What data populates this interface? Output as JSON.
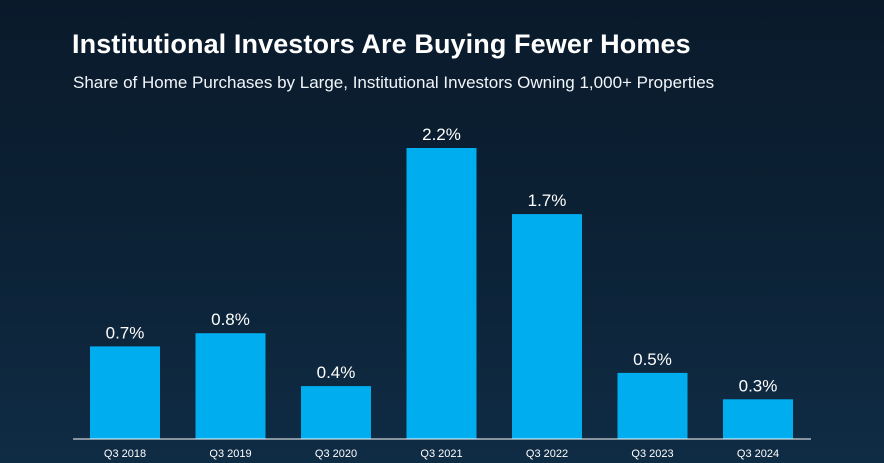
{
  "header": {
    "title": "Institutional Investors Are Buying Fewer Homes",
    "subtitle": "Share of Home Purchases by Large, Institutional Investors Owning 1,000+ Properties"
  },
  "colors": {
    "bar": "#00aeef",
    "background": "#0c2236",
    "text": "#ffffff"
  },
  "chart_data": {
    "type": "bar",
    "title": "Institutional Investors Are Buying Fewer Homes",
    "subtitle": "Share of Home Purchases by Large, Institutional Investors Owning 1,000+ Properties",
    "categories": [
      "Q3 2018",
      "Q3 2019",
      "Q3 2020",
      "Q3 2021",
      "Q3 2022",
      "Q3 2023",
      "Q3 2024"
    ],
    "values": [
      0.7,
      0.8,
      0.4,
      2.2,
      1.7,
      0.5,
      0.3
    ],
    "value_labels": [
      "0.7%",
      "0.8%",
      "0.4%",
      "2.2%",
      "1.7%",
      "0.5%",
      "0.3%"
    ],
    "unit": "%",
    "ylim": [
      0,
      2.2
    ],
    "grid": false,
    "legend": "none"
  }
}
